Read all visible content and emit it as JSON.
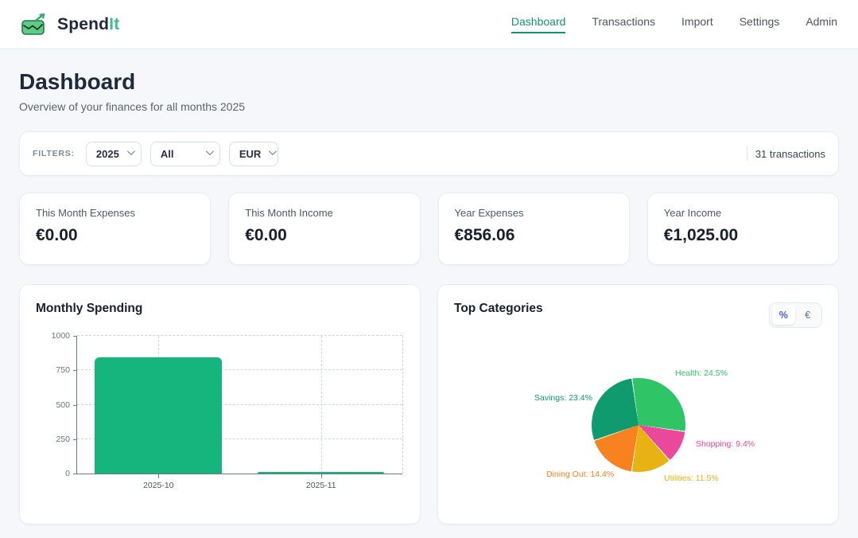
{
  "app": {
    "name_primary": "Spend",
    "name_secondary": "It",
    "accent_color": "#17926e"
  },
  "nav": {
    "items": [
      {
        "label": "Dashboard",
        "active": true
      },
      {
        "label": "Transactions",
        "active": false
      },
      {
        "label": "Import",
        "active": false
      },
      {
        "label": "Settings",
        "active": false
      },
      {
        "label": "Admin",
        "active": false
      }
    ]
  },
  "page": {
    "title": "Dashboard",
    "subtitle": "Overview of your finances for all months 2025"
  },
  "filters": {
    "label": "FILTERS:",
    "year_selected": "2025",
    "month_selected": "All",
    "currency_selected": "EUR",
    "transactions_summary": "31 transactions"
  },
  "stats": [
    {
      "label": "This Month Expenses",
      "value": "€0.00"
    },
    {
      "label": "This Month Income",
      "value": "€0.00"
    },
    {
      "label": "Year Expenses",
      "value": "€856.06"
    },
    {
      "label": "Year Income",
      "value": "€1,025.00"
    }
  ],
  "chart_data": [
    {
      "type": "bar",
      "title": "Monthly Spending",
      "categories": [
        "2025-10",
        "2025-11"
      ],
      "values": [
        845,
        11
      ],
      "ylim": [
        0,
        1000
      ],
      "yticks": [
        0,
        250,
        500,
        750,
        1000
      ],
      "grid": true,
      "bar_color": "#17b57e"
    },
    {
      "type": "pie",
      "title": "Top Categories",
      "unit_toggle": {
        "options": [
          "%",
          "€"
        ],
        "selected": "%"
      },
      "start_angle_deg": -8,
      "slices": [
        {
          "label": "Health",
          "value": 24.5,
          "color": "#2fc465"
        },
        {
          "label": "Shopping",
          "value": 9.4,
          "color": "#e9489b"
        },
        {
          "label": "Utilities",
          "value": 11.5,
          "color": "#e9b213"
        },
        {
          "label": "Dining Out",
          "value": 14.4,
          "color": "#f8821f"
        },
        {
          "label": "Savings",
          "value": 23.4,
          "color": "#0f9b6e"
        }
      ]
    }
  ]
}
